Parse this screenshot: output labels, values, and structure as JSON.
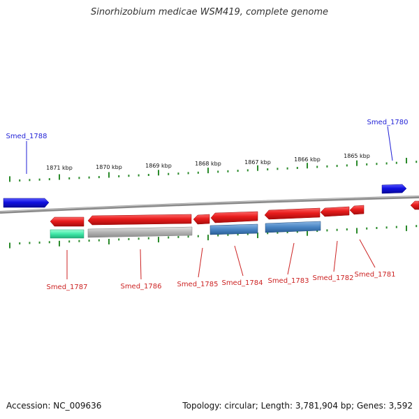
{
  "title": "Sinorhizobium medicae WSM419, complete genome",
  "footer": {
    "accession": "Accession: NC_009636",
    "summary": "Topology: circular; Length: 3,781,904 bp; Genes: 3,592"
  },
  "ruler": {
    "labels": [
      "1871 kbp",
      "1870 kbp",
      "1869 kbp",
      "1868 kbp",
      "1867 kbp",
      "1866 kbp",
      "1865 kbp"
    ]
  },
  "genes": [
    {
      "id": "Smed_1788",
      "color": "#1f1fd6",
      "strand": "forward"
    },
    {
      "id": "Smed_1780",
      "color": "#1f1fd6",
      "strand": "forward"
    },
    {
      "id": "Smed_1787",
      "color": "#cc2222",
      "strand": "reverse"
    },
    {
      "id": "Smed_1786",
      "color": "#cc2222",
      "strand": "reverse"
    },
    {
      "id": "Smed_1785",
      "color": "#cc2222",
      "strand": "reverse"
    },
    {
      "id": "Smed_1784",
      "color": "#cc2222",
      "strand": "reverse"
    },
    {
      "id": "Smed_1783",
      "color": "#cc2222",
      "strand": "reverse"
    },
    {
      "id": "Smed_1782",
      "color": "#cc2222",
      "strand": "reverse"
    },
    {
      "id": "Smed_1781",
      "color": "#cc2222",
      "strand": "reverse"
    }
  ],
  "colors": {
    "forward_gene": "#1010e0",
    "reverse_gene": "#e81c1c",
    "rna_feature": "#40e8a8",
    "pseudo_feature": "#b4b4b4",
    "cds_feature": "#4a86c4",
    "tick": "#2a8a2a",
    "backbone": "#8a8a8a"
  }
}
